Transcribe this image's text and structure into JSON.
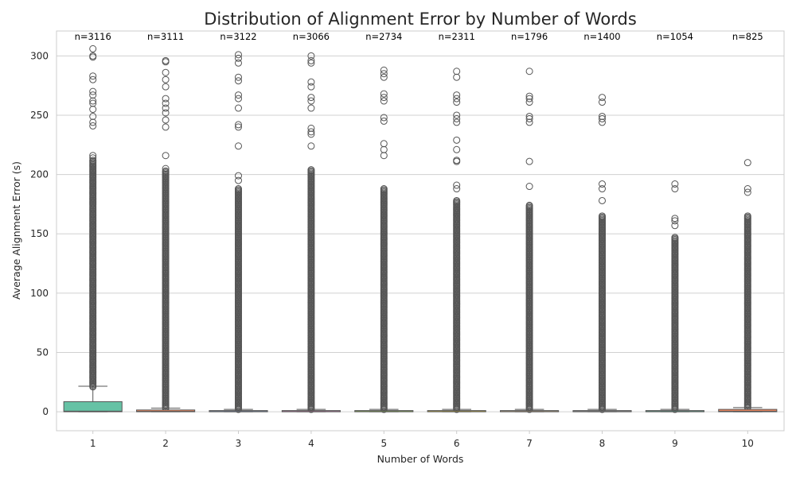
{
  "chart_data": {
    "type": "box",
    "title": "Distribution of Alignment Error by Number of Words",
    "xlabel": "Number of Words",
    "ylabel": "Average Alignment Error (s)",
    "categories": [
      "1",
      "2",
      "3",
      "4",
      "5",
      "6",
      "7",
      "8",
      "9",
      "10"
    ],
    "counts": [
      "n=3116",
      "n=3111",
      "n=3122",
      "n=3066",
      "n=2734",
      "n=2311",
      "n=1796",
      "n=1400",
      "n=1054",
      "n=825"
    ],
    "ylim": [
      -16,
      321
    ],
    "yticks": [
      0,
      50,
      100,
      150,
      200,
      250,
      300
    ],
    "grid": true,
    "boxes": [
      {
        "category": "1",
        "q1": 0.0,
        "median": 0.5,
        "q3": 8.5,
        "whisker_low": 0.0,
        "whisker_high": 21.5,
        "color": "#66c2a5",
        "outliers_dense": [
          21,
          212
        ],
        "outliers": [
          214,
          216,
          241,
          244,
          249,
          255,
          260,
          262,
          267,
          270,
          280,
          283,
          299,
          300,
          306
        ]
      },
      {
        "category": "2",
        "q1": 0.0,
        "median": 0.3,
        "q3": 1.5,
        "whisker_low": 0.0,
        "whisker_high": 3.0,
        "color": "#fc8d62",
        "outliers_dense": [
          3,
          203
        ],
        "outliers": [
          205,
          216,
          240,
          246,
          252,
          256,
          260,
          264,
          274,
          280,
          286,
          295,
          296
        ]
      },
      {
        "category": "3",
        "q1": 0.0,
        "median": 0.2,
        "q3": 1.0,
        "whisker_low": 0.0,
        "whisker_high": 2.0,
        "color": "#8da0cb",
        "outliers_dense": [
          2,
          188
        ],
        "outliers": [
          195,
          199,
          224,
          240,
          242,
          256,
          264,
          267,
          279,
          282,
          294,
          298,
          301
        ]
      },
      {
        "category": "4",
        "q1": 0.0,
        "median": 0.2,
        "q3": 1.0,
        "whisker_low": 0.0,
        "whisker_high": 2.0,
        "color": "#e78ac3",
        "outliers_dense": [
          2,
          204
        ],
        "outliers": [
          224,
          234,
          236,
          239,
          256,
          262,
          265,
          274,
          278,
          294,
          296,
          300
        ]
      },
      {
        "category": "5",
        "q1": 0.0,
        "median": 0.2,
        "q3": 1.0,
        "whisker_low": 0.0,
        "whisker_high": 2.0,
        "color": "#a6d854",
        "outliers_dense": [
          2,
          188
        ],
        "outliers": [
          216,
          221,
          226,
          245,
          248,
          262,
          265,
          268,
          282,
          285,
          288
        ]
      },
      {
        "category": "6",
        "q1": 0.0,
        "median": 0.2,
        "q3": 1.0,
        "whisker_low": 0.0,
        "whisker_high": 2.0,
        "color": "#ffd92f",
        "outliers_dense": [
          2,
          178
        ],
        "outliers": [
          188,
          191,
          211,
          212,
          221,
          229,
          244,
          247,
          250,
          261,
          264,
          267,
          282,
          287
        ]
      },
      {
        "category": "7",
        "q1": 0.0,
        "median": 0.2,
        "q3": 1.0,
        "whisker_low": 0.0,
        "whisker_high": 2.0,
        "color": "#e5c494",
        "outliers_dense": [
          2,
          174
        ],
        "outliers": [
          190,
          211,
          244,
          247,
          249,
          261,
          264,
          266,
          287
        ]
      },
      {
        "category": "8",
        "q1": 0.0,
        "median": 0.2,
        "q3": 1.0,
        "whisker_low": 0.0,
        "whisker_high": 2.0,
        "color": "#b3b3b3",
        "outliers_dense": [
          2,
          165
        ],
        "outliers": [
          178,
          188,
          192,
          244,
          247,
          249,
          261,
          265
        ]
      },
      {
        "category": "9",
        "q1": 0.0,
        "median": 0.2,
        "q3": 1.0,
        "whisker_low": 0.0,
        "whisker_high": 2.0,
        "color": "#66c2a5",
        "outliers_dense": [
          2,
          147
        ],
        "outliers": [
          157,
          161,
          163,
          188,
          192
        ]
      },
      {
        "category": "10",
        "q1": 0.0,
        "median": 0.5,
        "q3": 2.0,
        "whisker_low": 0.0,
        "whisker_high": 3.5,
        "color": "#fc8d62",
        "outliers_dense": [
          3.5,
          165
        ],
        "outliers": [
          185,
          188,
          210
        ]
      }
    ],
    "colors": {
      "grid": "#d0d0d0",
      "spine": "#cccccc",
      "outlier_stroke": "#555555",
      "box_edge": "#555555"
    }
  }
}
